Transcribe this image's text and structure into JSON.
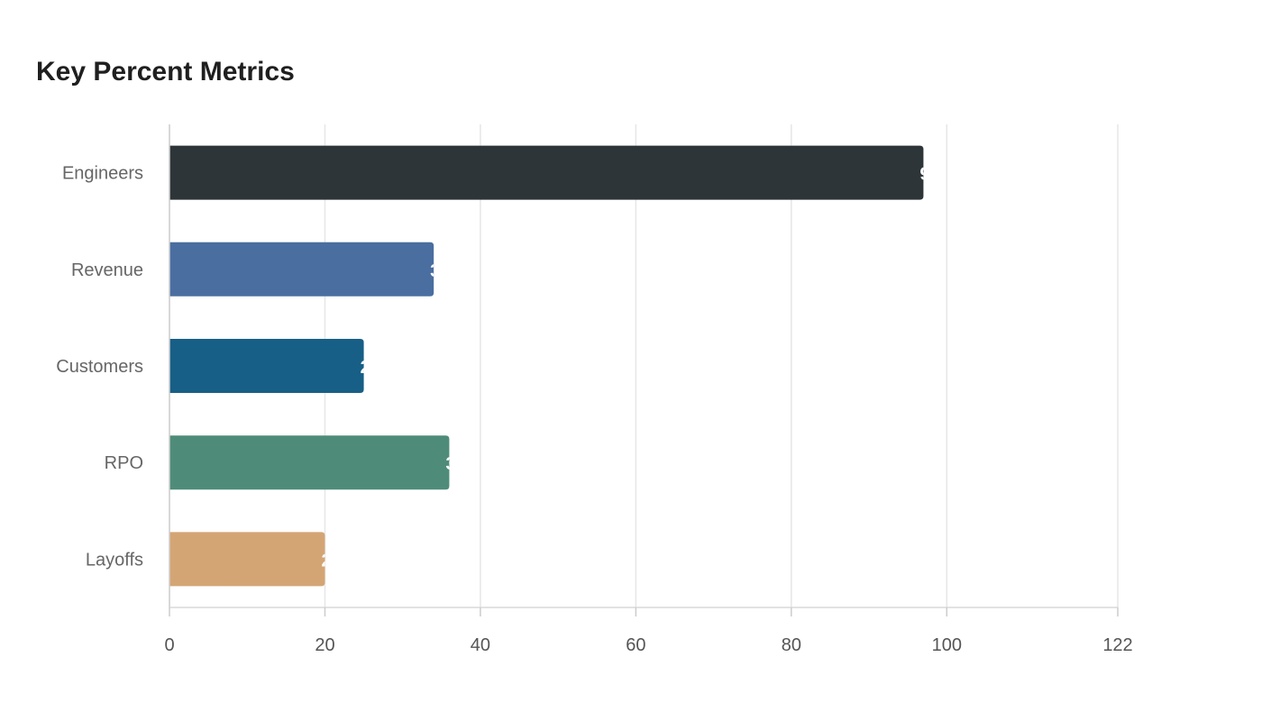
{
  "chart_data": {
    "type": "bar",
    "orientation": "horizontal",
    "title": "Key Percent Metrics",
    "categories": [
      "Engineers",
      "Revenue",
      "Customers",
      "RPO",
      "Layoffs"
    ],
    "values": [
      97,
      34,
      25,
      36,
      20
    ],
    "colors": [
      "#2e3538",
      "#4a6ea0",
      "#175f86",
      "#4e8c79",
      "#d4a574"
    ],
    "xticks": [
      "0",
      "20",
      "40",
      "60",
      "80",
      "100",
      "122"
    ],
    "xlim": [
      0,
      122
    ],
    "grid": "vertical",
    "legend": "none"
  }
}
